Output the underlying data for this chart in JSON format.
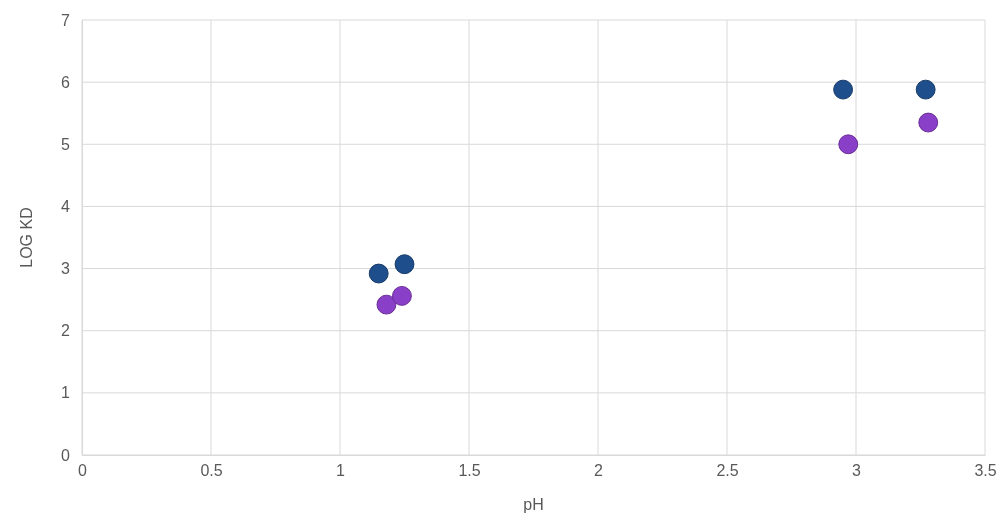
{
  "chart_data": {
    "type": "scatter",
    "xlabel": "pH",
    "ylabel": "LOG KD",
    "xlim": [
      0,
      3.5
    ],
    "xticks": [
      0,
      0.5,
      1,
      1.5,
      2,
      2.5,
      3,
      3.5
    ],
    "ylim": [
      0,
      7
    ],
    "yticks": [
      0,
      1,
      2,
      3,
      4,
      5,
      6,
      7
    ],
    "grid": true,
    "marker": "circle",
    "series": [
      {
        "color": "#1f4e8c",
        "x": [
          1.15,
          1.25,
          2.95,
          3.27
        ],
        "values": [
          2.92,
          3.07,
          5.88,
          5.88
        ]
      },
      {
        "color": "#8a3fc8",
        "x": [
          1.18,
          1.24,
          2.97,
          3.28
        ],
        "values": [
          2.42,
          2.56,
          5.0,
          5.35
        ]
      }
    ]
  }
}
